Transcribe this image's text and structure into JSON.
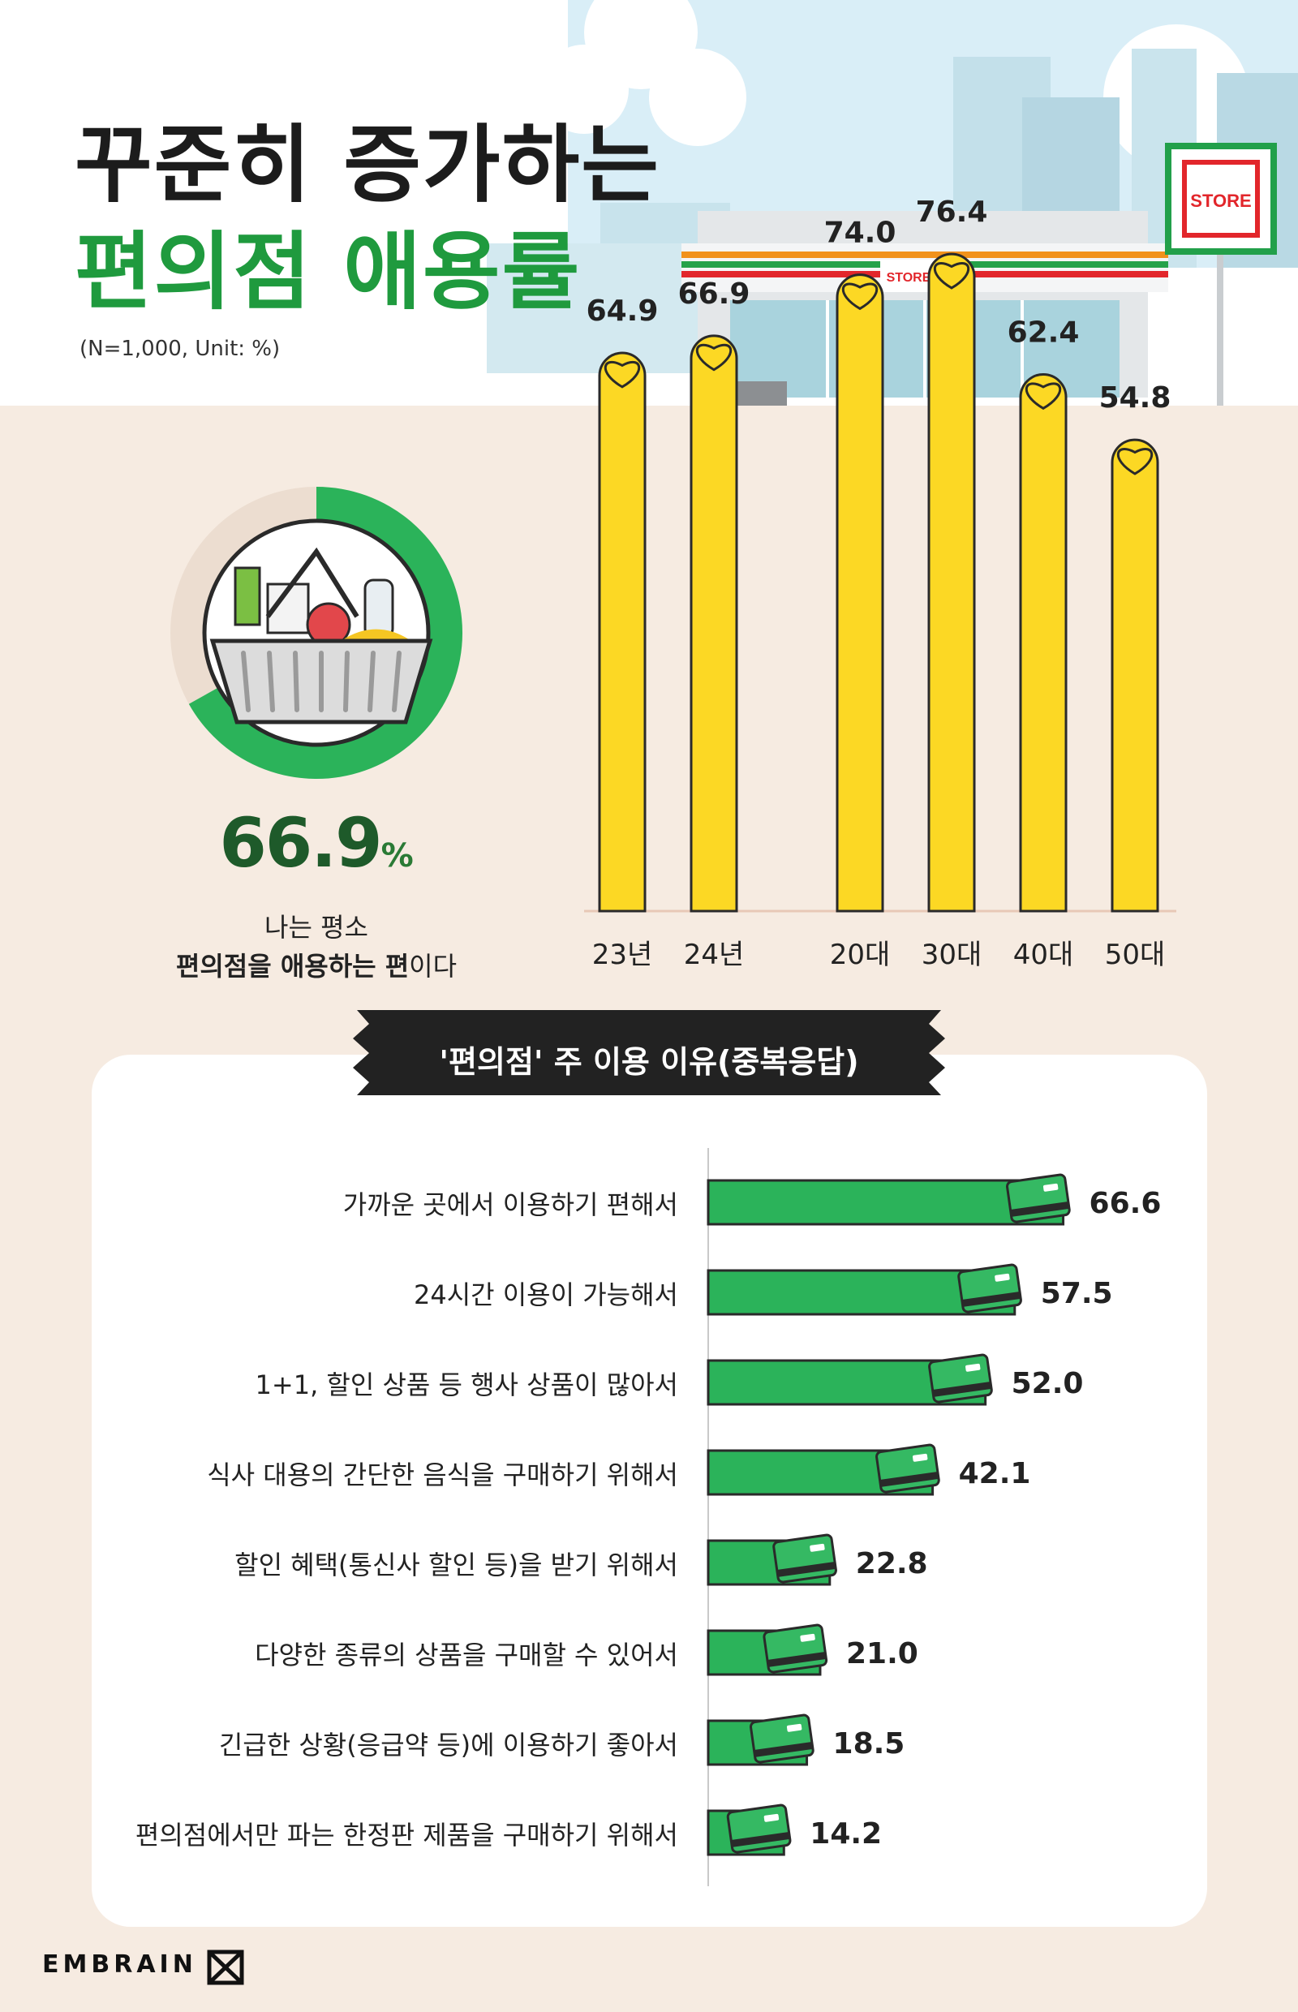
{
  "header": {
    "title_line1": "꾸준히 증가하는",
    "title_line2": "편의점 애용률",
    "note": "(N=1,000, Unit: %)",
    "store_sign_text": "STORE"
  },
  "headline": {
    "value": "66.9",
    "unit": "%",
    "caption_line1": "나는 평소",
    "caption_line2_bold": "편의점을 애용하는 편",
    "caption_line2_rest": "이다",
    "fraction": 0.669,
    "accent_color": "#2bb35a",
    "track_color": "#ecddd0"
  },
  "reasons_title": "'편의점' 주 이용 이유(중복응답)",
  "chart_data": [
    {
      "type": "bar",
      "orientation": "vertical",
      "categories": [
        "23년",
        "24년",
        "20대",
        "30대",
        "40대",
        "50대"
      ],
      "values": [
        64.9,
        66.9,
        74.0,
        76.4,
        62.4,
        54.8
      ],
      "value_labels": [
        "64.9",
        "66.9",
        "74.0",
        "76.4",
        "62.4",
        "54.8"
      ],
      "ylim": [
        0,
        100
      ],
      "bar_color": "#fcd824",
      "grid": false
    },
    {
      "type": "bar",
      "orientation": "horizontal",
      "categories": [
        "가까운 곳에서 이용하기 편해서",
        "24시간 이용이 가능해서",
        "1+1, 할인 상품 등 행사 상품이 많아서",
        "식사 대용의 간단한 음식을 구매하기 위해서",
        "할인 혜택(통신사 할인 등)을 받기 위해서",
        "다양한 종류의 상품을 구매할 수 있어서",
        "긴급한 상황(응급약 등)에 이용하기 좋아서",
        "편의점에서만 파는 한정판 제품을 구매하기 위해서"
      ],
      "values": [
        66.6,
        57.5,
        52.0,
        42.1,
        22.8,
        21.0,
        18.5,
        14.2
      ],
      "value_labels": [
        "66.6",
        "57.5",
        "52.0",
        "42.1",
        "22.8",
        "21.0",
        "18.5",
        "14.2"
      ],
      "xlim": [
        0,
        100
      ],
      "bar_color": "#2bb35a",
      "grid": false
    }
  ],
  "footer": {
    "brand": "EMBRAIN"
  }
}
